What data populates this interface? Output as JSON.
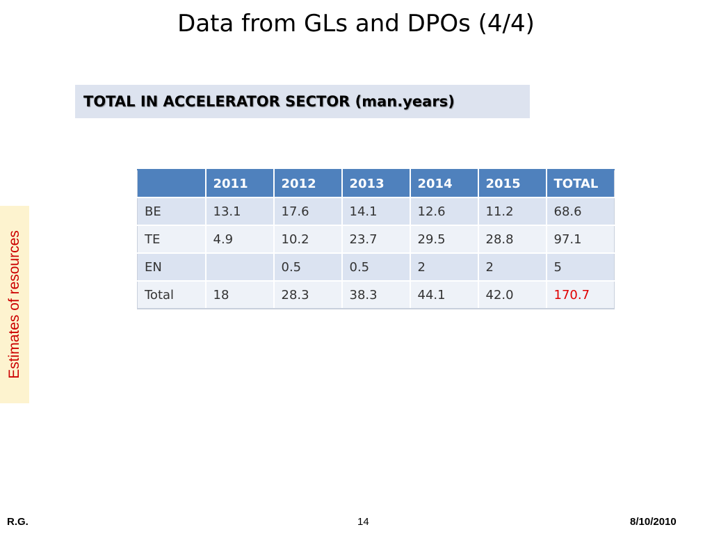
{
  "slide": {
    "title": "Data from GLs and DPOs (4/4)",
    "subtitle": "TOTAL IN ACCELERATOR SECTOR (man.years)",
    "side_label": "Estimates of resources"
  },
  "table": {
    "headers": [
      "",
      "2011",
      "2012",
      "2013",
      "2014",
      "2015",
      "TOTAL"
    ],
    "rows": [
      [
        "BE",
        "13.1",
        "17.6",
        "14.1",
        "12.6",
        "11.2",
        "68.6"
      ],
      [
        "TE",
        "4.9",
        "10.2",
        "23.7",
        "29.5",
        "28.8",
        "97.1"
      ],
      [
        "EN",
        "",
        "0.5",
        "0.5",
        "2",
        "2",
        "5"
      ],
      [
        "Total",
        "18",
        "28.3",
        "38.3",
        "44.1",
        "42.0",
        "170.7"
      ]
    ],
    "highlight_color": "#e00000"
  },
  "footer": {
    "author": "R.G.",
    "page_number": "14",
    "date": "8/10/2010"
  }
}
